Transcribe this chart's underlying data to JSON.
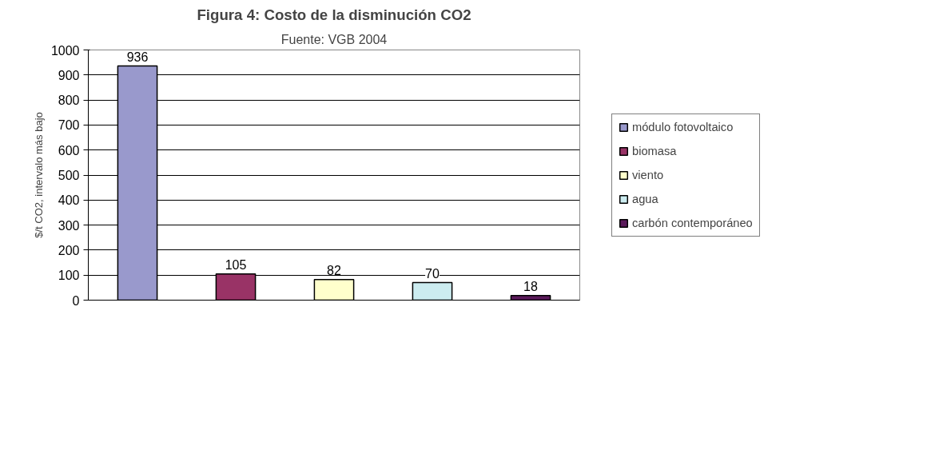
{
  "chart_data": {
    "type": "bar",
    "title": "Figura 4: Costo de la disminución CO2",
    "subtitle": "Fuente: VGB 2004",
    "ylabel": "$/t CO2, intervalo más bajo",
    "categories": [
      null,
      null,
      null,
      null,
      null
    ],
    "series": [
      {
        "name": "módulo fotovoltaico",
        "color": "#9999cc",
        "values": [
          936,
          null,
          null,
          null,
          null
        ]
      },
      {
        "name": "biomasa",
        "color": "#993366",
        "values": [
          null,
          105,
          null,
          null,
          null
        ]
      },
      {
        "name": "viento",
        "color": "#ffffcc",
        "values": [
          null,
          null,
          82,
          null,
          null
        ]
      },
      {
        "name": "agua",
        "color": "#ccecf0",
        "values": [
          null,
          null,
          null,
          70,
          null
        ]
      },
      {
        "name": "carbón contemporáneo",
        "color": "#5a1a5a",
        "values": [
          null,
          null,
          null,
          null,
          18
        ]
      }
    ],
    "ylim": [
      0,
      1000
    ],
    "yticks": [
      0,
      100,
      200,
      300,
      400,
      500,
      600,
      700,
      800,
      900,
      1000
    ],
    "grid": "y",
    "legend": "right",
    "data_labels": true,
    "tick_labels": "y"
  }
}
